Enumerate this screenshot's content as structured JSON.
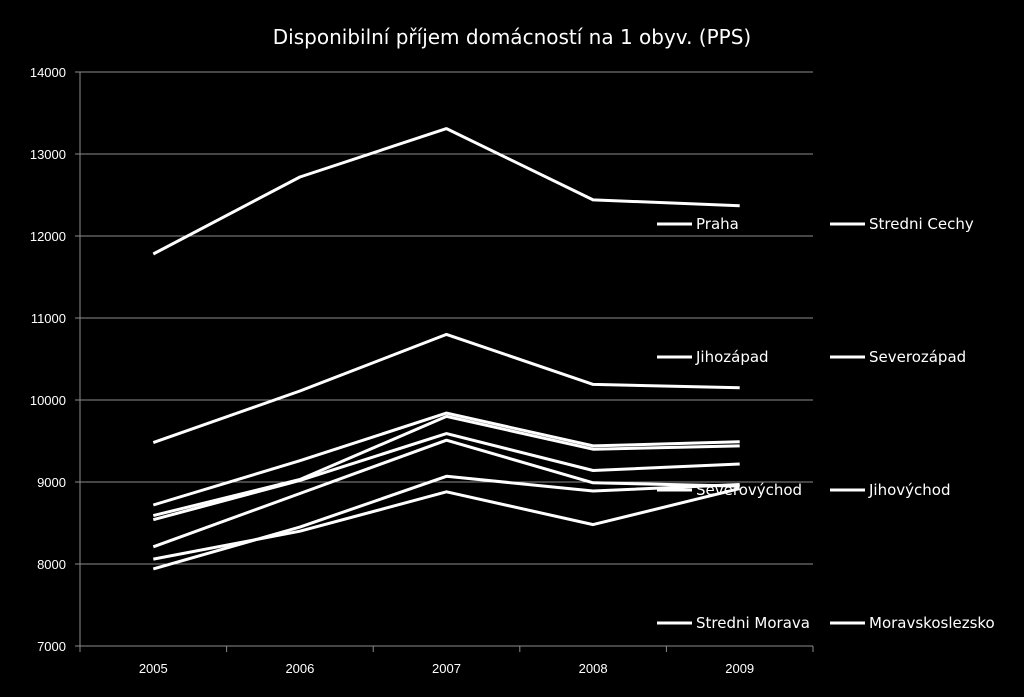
{
  "chart_data": {
    "type": "line",
    "title": "Disponibilní příjem domácností na 1 obyv. (PPS)",
    "xlabel": "",
    "ylabel": "",
    "categories": [
      "2005",
      "2006",
      "2007",
      "2008",
      "2009"
    ],
    "ylim": [
      7000,
      14000
    ],
    "yticks": [
      7000,
      8000,
      9000,
      10000,
      11000,
      12000,
      13000,
      14000
    ],
    "grid": true,
    "legend_position": "right",
    "line_color": "#ffffff",
    "series": [
      {
        "name": "Praha",
        "values": [
          11780,
          12720,
          13310,
          12440,
          12370
        ]
      },
      {
        "name": "Stredni Cechy",
        "values": [
          9480,
          10110,
          10800,
          10190,
          10150
        ]
      },
      {
        "name": "Jihozápad",
        "values": [
          8720,
          9260,
          9840,
          9440,
          9490
        ]
      },
      {
        "name": "Severozápad",
        "values": [
          7940,
          8450,
          9070,
          8890,
          8970
        ]
      },
      {
        "name": "Severovýchod",
        "values": [
          8590,
          9030,
          9800,
          9400,
          9440
        ]
      },
      {
        "name": "Jihovýchod",
        "values": [
          8540,
          9020,
          9590,
          9140,
          9220
        ]
      },
      {
        "name": "Stredni Morava",
        "values": [
          8210,
          8860,
          9510,
          8990,
          8950
        ]
      },
      {
        "name": "Moravskoslezsko",
        "values": [
          8060,
          8400,
          8880,
          8480,
          8920
        ]
      }
    ]
  },
  "legend": {
    "rows": [
      [
        "Praha",
        "Stredni Cechy"
      ],
      [
        "Jihozápad",
        "Severozápad"
      ],
      [
        "Severovýchod",
        "Jihovýchod"
      ],
      [
        "Stredni Morava",
        "Moravskoslezsko"
      ]
    ],
    "labels": [
      "Praha",
      "Stredni Cechy",
      "Jihozápad",
      "Severozápad",
      "Severovýchod",
      "Jihovýchod",
      "Stredni Morava",
      "Moravskoslezsko"
    ]
  }
}
